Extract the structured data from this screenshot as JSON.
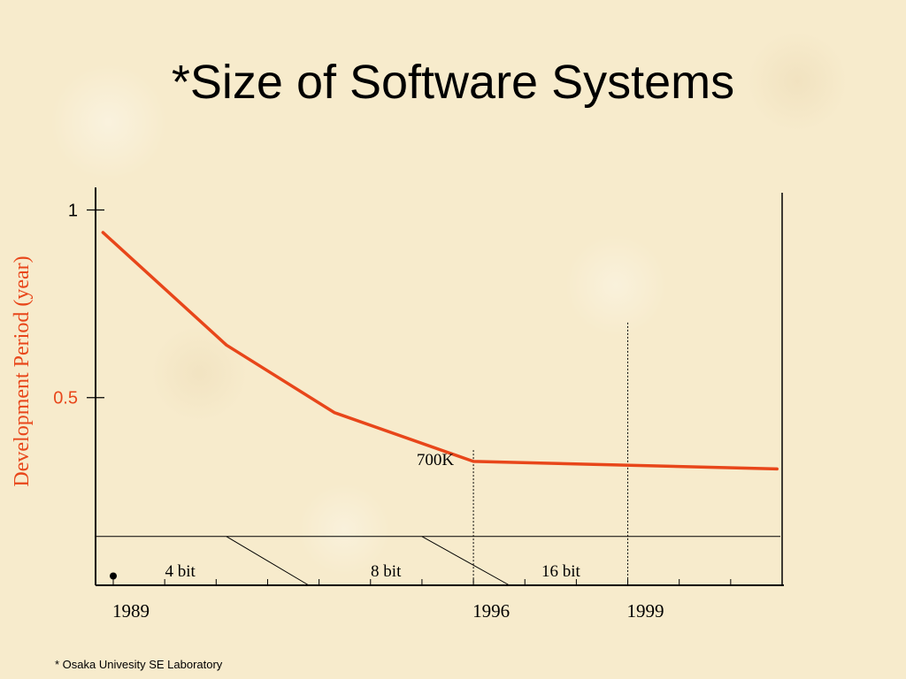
{
  "slide": {
    "title": "*Size of Software Systems",
    "footnote": "* Osaka Univesity SE Laboratory"
  },
  "colors": {
    "background": "#f7ebcc",
    "series_line": "#e8461a",
    "ylabel_color": "#e8461a",
    "axis": "#000000"
  },
  "chart_data": {
    "type": "line",
    "title": "",
    "xlabel": "",
    "ylabel": "Development Period (year)",
    "xlim": [
      1989,
      2002
    ],
    "ylim": [
      0,
      1.06
    ],
    "x_tick_labels": [
      {
        "x": 1989,
        "label": "1989"
      },
      {
        "x": 1996,
        "label": "1996"
      },
      {
        "x": 1999,
        "label": "1999"
      }
    ],
    "x_minor_ticks": [
      1989,
      1990,
      1991,
      1992,
      1993,
      1994,
      1995,
      1996,
      1997,
      1998,
      1999,
      2000,
      2001,
      2002
    ],
    "y_ticks": [
      {
        "y": 1,
        "label": "1"
      },
      {
        "y": 0.5,
        "label": "0.5"
      }
    ],
    "series": [
      {
        "points": [
          {
            "x": 1988.8,
            "y": 0.94
          },
          {
            "x": 1991.2,
            "y": 0.64
          },
          {
            "x": 1993.3,
            "y": 0.46
          },
          {
            "x": 1996.0,
            "y": 0.33
          },
          {
            "x": 2001.9,
            "y": 0.31
          }
        ]
      }
    ],
    "annotations": [
      {
        "text": "700K",
        "x": 1996.0,
        "y": 0.33
      }
    ],
    "vertical_markers": [
      {
        "x": 1996,
        "y_top": 0.36
      },
      {
        "x": 1999,
        "y_top": 0.7
      }
    ],
    "eras": [
      {
        "label": "4 bit",
        "x_center": 1990.3
      },
      {
        "label": "8 bit",
        "x_center": 1994.3
      },
      {
        "label": "16 bit",
        "x_center": 1997.7
      }
    ],
    "era_dividers": [
      {
        "x_start": 1991.2,
        "x_end": 1992.8
      },
      {
        "x_start": 1995.0,
        "x_end": 1996.7
      }
    ],
    "era_band_top_y": 0.13,
    "origin_dot": {
      "x": 1989,
      "y": 0.02
    }
  }
}
